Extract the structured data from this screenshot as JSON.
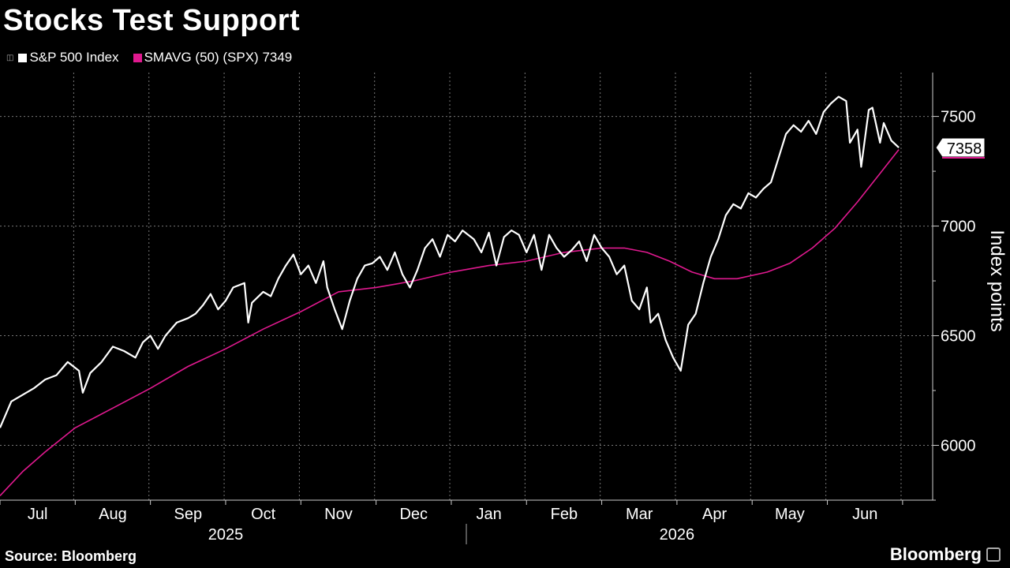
{
  "title": "Stocks Test Support",
  "legend": [
    {
      "label": "S&P 500 Index",
      "color": "#ffffff"
    },
    {
      "label": "SMAVG (50) (SPX) 7349",
      "color": "#e0198f"
    }
  ],
  "source": "Source: Bloomberg",
  "brand": "Bloomberg",
  "chart_data": {
    "type": "line",
    "title": "Stocks Test Support",
    "ylabel": "Index points",
    "ylim": [
      5750,
      7700
    ],
    "yticks": [
      6000,
      6500,
      7000,
      7500
    ],
    "xlim": [
      0,
      12.4
    ],
    "months": [
      {
        "label": "Jul",
        "pos": 0.5
      },
      {
        "label": "Aug",
        "pos": 1.5
      },
      {
        "label": "Sep",
        "pos": 2.5
      },
      {
        "label": "Oct",
        "pos": 3.5
      },
      {
        "label": "Nov",
        "pos": 4.5
      },
      {
        "label": "Dec",
        "pos": 5.5
      },
      {
        "label": "Jan",
        "pos": 6.5
      },
      {
        "label": "Feb",
        "pos": 7.5
      },
      {
        "label": "Mar",
        "pos": 8.5
      },
      {
        "label": "Apr",
        "pos": 9.5
      },
      {
        "label": "May",
        "pos": 10.5
      },
      {
        "label": "Jun",
        "pos": 11.5
      }
    ],
    "years": [
      {
        "label": "2025",
        "pos": 3.0
      },
      {
        "label": "2026",
        "pos": 9.0
      }
    ],
    "last_value_label": "7358",
    "grid": true,
    "series": [
      {
        "name": "S&P 500 Index",
        "color": "#ffffff",
        "points": [
          [
            0.0,
            6080
          ],
          [
            0.15,
            6200
          ],
          [
            0.3,
            6230
          ],
          [
            0.45,
            6260
          ],
          [
            0.6,
            6300
          ],
          [
            0.75,
            6320
          ],
          [
            0.9,
            6380
          ],
          [
            1.05,
            6340
          ],
          [
            1.1,
            6240
          ],
          [
            1.2,
            6330
          ],
          [
            1.35,
            6380
          ],
          [
            1.5,
            6450
          ],
          [
            1.65,
            6430
          ],
          [
            1.8,
            6400
          ],
          [
            1.9,
            6470
          ],
          [
            2.0,
            6500
          ],
          [
            2.1,
            6440
          ],
          [
            2.2,
            6500
          ],
          [
            2.35,
            6560
          ],
          [
            2.5,
            6580
          ],
          [
            2.6,
            6600
          ],
          [
            2.7,
            6640
          ],
          [
            2.8,
            6690
          ],
          [
            2.9,
            6620
          ],
          [
            3.0,
            6660
          ],
          [
            3.1,
            6720
          ],
          [
            3.25,
            6740
          ],
          [
            3.3,
            6560
          ],
          [
            3.35,
            6650
          ],
          [
            3.5,
            6700
          ],
          [
            3.6,
            6680
          ],
          [
            3.7,
            6760
          ],
          [
            3.8,
            6820
          ],
          [
            3.9,
            6870
          ],
          [
            4.0,
            6780
          ],
          [
            4.1,
            6820
          ],
          [
            4.2,
            6740
          ],
          [
            4.3,
            6840
          ],
          [
            4.35,
            6720
          ],
          [
            4.45,
            6620
          ],
          [
            4.55,
            6530
          ],
          [
            4.65,
            6660
          ],
          [
            4.75,
            6760
          ],
          [
            4.85,
            6820
          ],
          [
            4.95,
            6830
          ],
          [
            5.05,
            6860
          ],
          [
            5.15,
            6800
          ],
          [
            5.25,
            6880
          ],
          [
            5.35,
            6780
          ],
          [
            5.45,
            6720
          ],
          [
            5.55,
            6800
          ],
          [
            5.65,
            6900
          ],
          [
            5.75,
            6940
          ],
          [
            5.85,
            6860
          ],
          [
            5.95,
            6960
          ],
          [
            6.05,
            6930
          ],
          [
            6.15,
            6980
          ],
          [
            6.3,
            6940
          ],
          [
            6.4,
            6880
          ],
          [
            6.5,
            6970
          ],
          [
            6.6,
            6820
          ],
          [
            6.7,
            6950
          ],
          [
            6.8,
            6980
          ],
          [
            6.9,
            6960
          ],
          [
            7.0,
            6880
          ],
          [
            7.1,
            6960
          ],
          [
            7.2,
            6800
          ],
          [
            7.3,
            6960
          ],
          [
            7.4,
            6900
          ],
          [
            7.5,
            6860
          ],
          [
            7.6,
            6890
          ],
          [
            7.7,
            6930
          ],
          [
            7.8,
            6840
          ],
          [
            7.9,
            6960
          ],
          [
            8.0,
            6900
          ],
          [
            8.1,
            6860
          ],
          [
            8.2,
            6780
          ],
          [
            8.3,
            6820
          ],
          [
            8.4,
            6660
          ],
          [
            8.5,
            6620
          ],
          [
            8.6,
            6720
          ],
          [
            8.65,
            6560
          ],
          [
            8.75,
            6600
          ],
          [
            8.85,
            6480
          ],
          [
            8.95,
            6400
          ],
          [
            9.05,
            6340
          ],
          [
            9.15,
            6550
          ],
          [
            9.25,
            6600
          ],
          [
            9.35,
            6740
          ],
          [
            9.45,
            6860
          ],
          [
            9.55,
            6940
          ],
          [
            9.65,
            7050
          ],
          [
            9.75,
            7100
          ],
          [
            9.85,
            7080
          ],
          [
            9.95,
            7150
          ],
          [
            10.05,
            7130
          ],
          [
            10.15,
            7170
          ],
          [
            10.25,
            7200
          ],
          [
            10.35,
            7310
          ],
          [
            10.45,
            7420
          ],
          [
            10.55,
            7460
          ],
          [
            10.65,
            7430
          ],
          [
            10.75,
            7480
          ],
          [
            10.85,
            7420
          ],
          [
            10.95,
            7520
          ],
          [
            11.05,
            7560
          ],
          [
            11.15,
            7590
          ],
          [
            11.25,
            7570
          ],
          [
            11.3,
            7380
          ],
          [
            11.4,
            7440
          ],
          [
            11.45,
            7270
          ],
          [
            11.55,
            7530
          ],
          [
            11.6,
            7540
          ],
          [
            11.7,
            7380
          ],
          [
            11.75,
            7470
          ],
          [
            11.85,
            7390
          ],
          [
            11.95,
            7358
          ]
        ]
      },
      {
        "name": "SMAVG (50) (SPX)",
        "color": "#e0198f",
        "points": [
          [
            0.0,
            5770
          ],
          [
            0.3,
            5880
          ],
          [
            0.6,
            5970
          ],
          [
            1.0,
            6080
          ],
          [
            1.5,
            6170
          ],
          [
            2.0,
            6260
          ],
          [
            2.5,
            6360
          ],
          [
            3.0,
            6440
          ],
          [
            3.5,
            6530
          ],
          [
            4.0,
            6610
          ],
          [
            4.5,
            6700
          ],
          [
            5.0,
            6720
          ],
          [
            5.5,
            6750
          ],
          [
            6.0,
            6790
          ],
          [
            6.5,
            6820
          ],
          [
            7.0,
            6840
          ],
          [
            7.5,
            6880
          ],
          [
            8.0,
            6900
          ],
          [
            8.3,
            6900
          ],
          [
            8.6,
            6880
          ],
          [
            8.9,
            6840
          ],
          [
            9.2,
            6790
          ],
          [
            9.5,
            6760
          ],
          [
            9.8,
            6760
          ],
          [
            10.2,
            6790
          ],
          [
            10.5,
            6830
          ],
          [
            10.8,
            6900
          ],
          [
            11.1,
            6990
          ],
          [
            11.4,
            7110
          ],
          [
            11.7,
            7240
          ],
          [
            11.95,
            7349
          ]
        ]
      }
    ]
  }
}
